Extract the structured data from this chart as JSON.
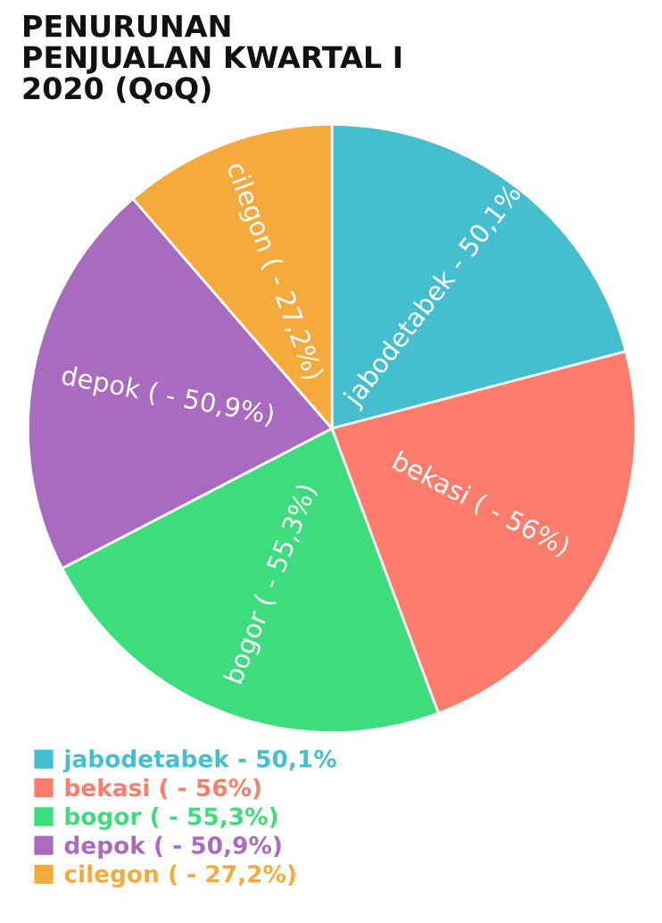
{
  "chart_data": {
    "type": "pie",
    "title": "PENURUNAN\nPENJUALAN KWARTAL I\n2020 (QoQ)",
    "categories": [
      "jabodetabek - 50,1%",
      "bekasi ( - 56%)",
      "bogor ( - 55,3%)",
      "depok ( - 50,9%)",
      "cilegon ( - 27,2%)"
    ],
    "values": [
      20.92,
      23.38,
      23.09,
      21.25,
      11.36
    ],
    "colors": [
      "#45bfcf",
      "#fd7c6b",
      "#3ddc7c",
      "#a86bbf",
      "#f7aa3c"
    ],
    "legend": "bottom"
  }
}
